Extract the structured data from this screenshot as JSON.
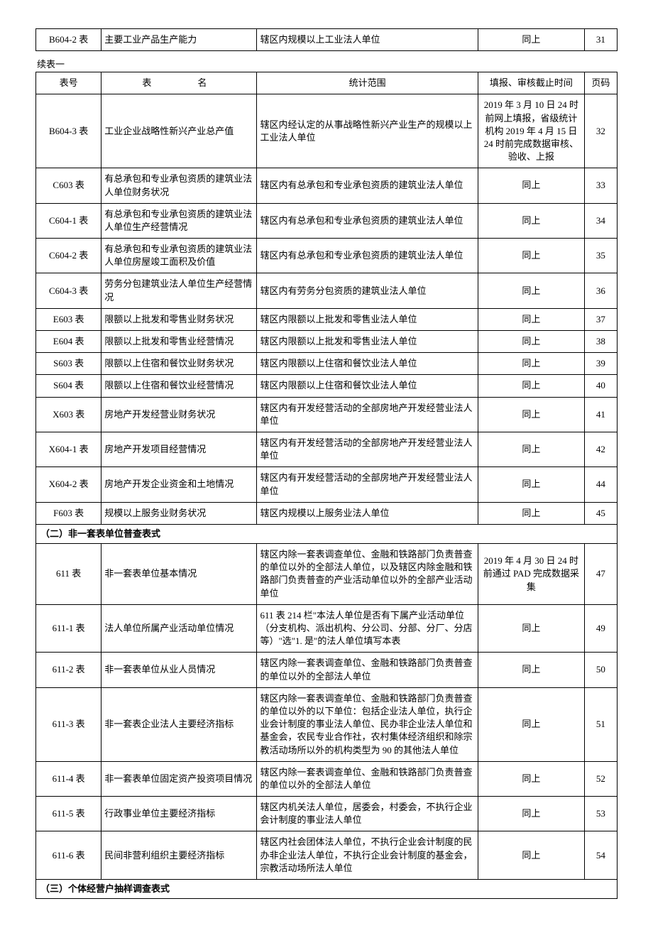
{
  "top_table": {
    "rows": [
      {
        "tno": "B604-2 表",
        "tname": "主要工业产品生产能力",
        "scope": "辖区内规模以上工业法人单位",
        "deadline": "同上",
        "page": "31"
      }
    ]
  },
  "continue_label": "续表一",
  "main_table": {
    "header": {
      "tno": "表号",
      "tname": "表　　名",
      "scope": "统计范围",
      "deadline": "填报、审核截止时间",
      "page": "页码"
    },
    "rows": [
      {
        "tno": "B604-3 表",
        "tname": "工业企业战略性新兴产业总产值",
        "scope": "辖区内经认定的从事战略性新兴产业生产的规模以上工业法人单位",
        "deadline": "2019 年 3 月 10 日 24 时前网上填报，省级统计机构 2019 年 4 月 15 日 24 时前完成数据审核、验收、上报",
        "page": "32"
      },
      {
        "tno": "C603 表",
        "tname": "有总承包和专业承包资质的建筑业法人单位财务状况",
        "scope": "辖区内有总承包和专业承包资质的建筑业法人单位",
        "deadline": "同上",
        "page": "33"
      },
      {
        "tno": "C604-1 表",
        "tname": "有总承包和专业承包资质的建筑业法人单位生产经营情况",
        "scope": "辖区内有总承包和专业承包资质的建筑业法人单位",
        "deadline": "同上",
        "page": "34"
      },
      {
        "tno": "C604-2 表",
        "tname": "有总承包和专业承包资质的建筑业法人单位房屋竣工面积及价值",
        "scope": "辖区内有总承包和专业承包资质的建筑业法人单位",
        "deadline": "同上",
        "page": "35"
      },
      {
        "tno": "C604-3 表",
        "tname": "劳务分包建筑业法人单位生产经营情况",
        "scope": "辖区内有劳务分包资质的建筑业法人单位",
        "deadline": "同上",
        "page": "36"
      },
      {
        "tno": "E603 表",
        "tname": "限额以上批发和零售业财务状况",
        "scope": "辖区内限额以上批发和零售业法人单位",
        "deadline": "同上",
        "page": "37"
      },
      {
        "tno": "E604 表",
        "tname": "限额以上批发和零售业经营情况",
        "scope": "辖区内限额以上批发和零售业法人单位",
        "deadline": "同上",
        "page": "38"
      },
      {
        "tno": "S603 表",
        "tname": "限额以上住宿和餐饮业财务状况",
        "scope": "辖区内限额以上住宿和餐饮业法人单位",
        "deadline": "同上",
        "page": "39"
      },
      {
        "tno": "S604 表",
        "tname": "限额以上住宿和餐饮业经营情况",
        "scope": "辖区内限额以上住宿和餐饮业法人单位",
        "deadline": "同上",
        "page": "40"
      },
      {
        "tno": "X603 表",
        "tname": "房地产开发经营业财务状况",
        "scope": "辖区内有开发经营活动的全部房地产开发经营业法人单位",
        "deadline": "同上",
        "page": "41"
      },
      {
        "tno": "X604-1 表",
        "tname": "房地产开发项目经营情况",
        "scope": "辖区内有开发经营活动的全部房地产开发经营业法人单位",
        "deadline": "同上",
        "page": "42"
      },
      {
        "tno": "X604-2 表",
        "tname": "房地产开发企业资金和土地情况",
        "scope": "辖区内有开发经营活动的全部房地产开发经营业法人单位",
        "deadline": "同上",
        "page": "44"
      },
      {
        "tno": "F603 表",
        "tname": "规模以上服务业财务状况",
        "scope": "辖区内规模以上服务业法人单位",
        "deadline": "同上",
        "page": "45"
      }
    ],
    "section2_title": "（二）非一套表单位普查表式",
    "section2_rows": [
      {
        "tno": "611 表",
        "tname": "非一套表单位基本情况",
        "scope": "辖区内除一套表调查单位、金融和铁路部门负责普查的单位以外的全部法人单位，以及辖区内除金融和铁路部门负责普查的产业活动单位以外的全部产业活动单位",
        "deadline": "2019 年 4 月 30 日 24 时前通过 PAD 完成数据采集",
        "page": "47"
      },
      {
        "tno": "611-1 表",
        "tname": "法人单位所属产业活动单位情况",
        "scope": "611 表 214 栏\"本法人单位是否有下属产业活动单位（分支机构、派出机构、分公司、分部、分厂、分店等）\"选\"1. 是\"的法人单位填写本表",
        "deadline": "同上",
        "page": "49"
      },
      {
        "tno": "611-2 表",
        "tname": "非一套表单位从业人员情况",
        "scope": "辖区内除一套表调查单位、金融和铁路部门负责普查的单位以外的全部法人单位",
        "deadline": "同上",
        "page": "50"
      },
      {
        "tno": "611-3 表",
        "tname": "非一套表企业法人主要经济指标",
        "scope": "辖区内除一套表调查单位、金融和铁路部门负责普查的单位以外的以下单位：包括企业法人单位，执行企业会计制度的事业法人单位、民办非企业法人单位和基金会，农民专业合作社，农村集体经济组织和除宗教活动场所以外的机构类型为 90 的其他法人单位",
        "deadline": "同上",
        "page": "51"
      },
      {
        "tno": "611-4 表",
        "tname": "非一套表单位固定资产投资项目情况",
        "scope": "辖区内除一套表调查单位、金融和铁路部门负责普查的单位以外的全部法人单位",
        "deadline": "同上",
        "page": "52"
      },
      {
        "tno": "611-5 表",
        "tname": "行政事业单位主要经济指标",
        "scope": "辖区内机关法人单位，居委会，村委会，不执行企业会计制度的事业法人单位",
        "deadline": "同上",
        "page": "53"
      },
      {
        "tno": "611-6 表",
        "tname": "民间非营利组织主要经济指标",
        "scope": "辖区内社会团体法人单位，不执行企业会计制度的民办非企业法人单位，不执行企业会计制度的基金会，宗教活动场所法人单位",
        "deadline": "同上",
        "page": "54"
      }
    ],
    "section3_title": "（三）个体经营户抽样调查表式"
  }
}
